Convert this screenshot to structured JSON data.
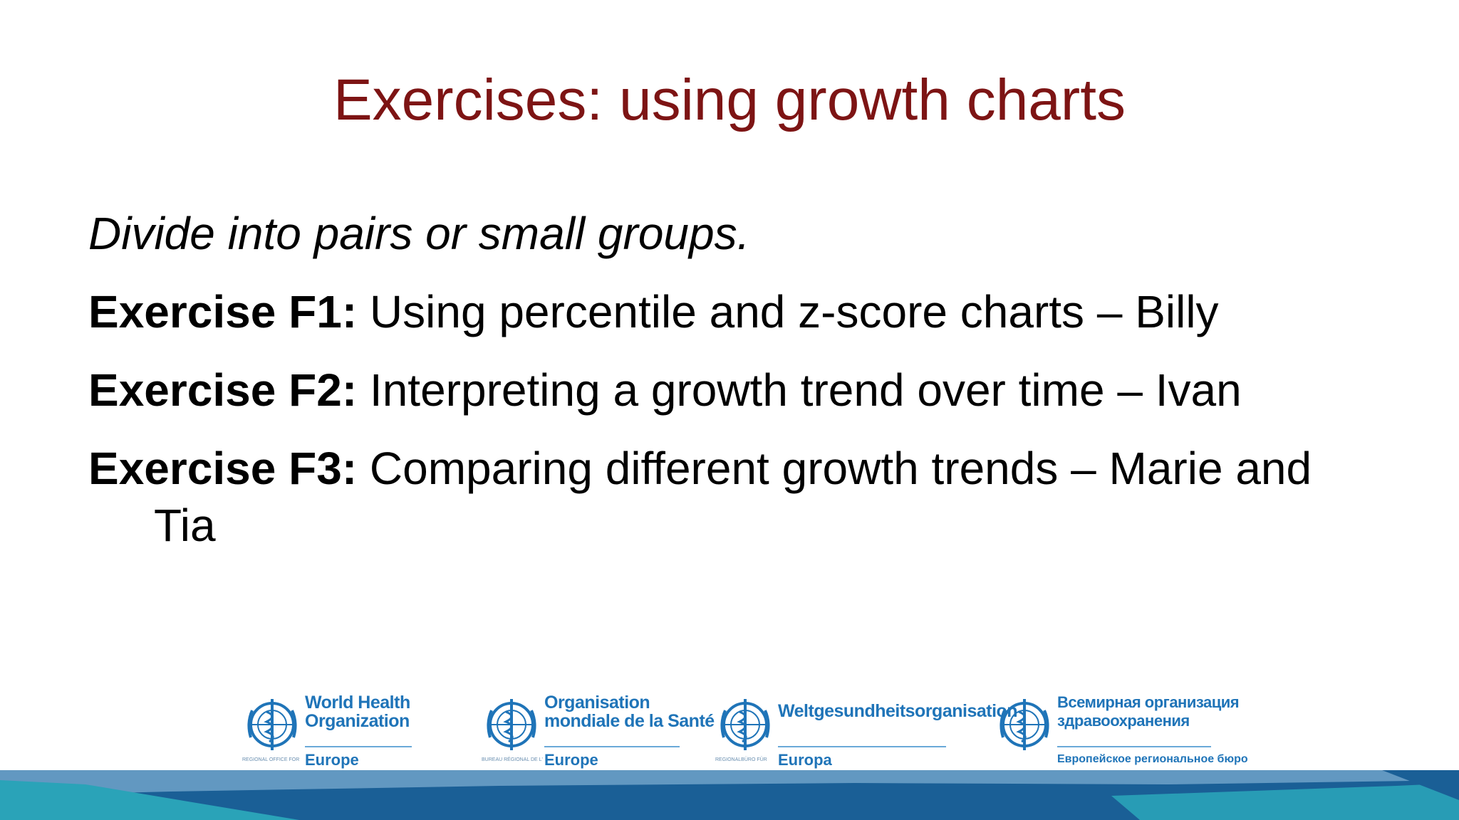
{
  "slide": {
    "title": "Exercises: using growth charts",
    "intro": "Divide into pairs or small groups.",
    "exercises": [
      {
        "label": "Exercise F1:",
        "text": " Using percentile and z-score charts – Billy"
      },
      {
        "label": "Exercise F2:",
        "text": " Interpreting a growth trend over time –  Ivan"
      },
      {
        "label": "Exercise F3:",
        "text": " Comparing different growth trends –  Marie and Tia"
      }
    ]
  },
  "logos": [
    {
      "lines": [
        "World Health",
        "Organization"
      ],
      "small": "REGIONAL OFFICE FOR",
      "region": "Europe",
      "icon": "who-emblem-icon"
    },
    {
      "lines": [
        "Organisation",
        "mondiale de la Santé"
      ],
      "small": "BUREAU RÉGIONAL DE L'",
      "region": "Europe",
      "icon": "who-emblem-icon"
    },
    {
      "lines": [
        "Weltgesundheitsorganisation"
      ],
      "small": "REGIONALBÜRO FÜR",
      "region": "Europa",
      "icon": "who-emblem-icon"
    },
    {
      "lines": [
        "Всемирная организация",
        "здравоохранения"
      ],
      "small": "",
      "region": "Европейское региональное бюро",
      "icon": "who-emblem-icon"
    }
  ],
  "colors": {
    "title": "#7d1414",
    "logo_blue": "#1f74b8",
    "band_dark": "#1a5f96",
    "band_teal": "#2aa3b8"
  }
}
